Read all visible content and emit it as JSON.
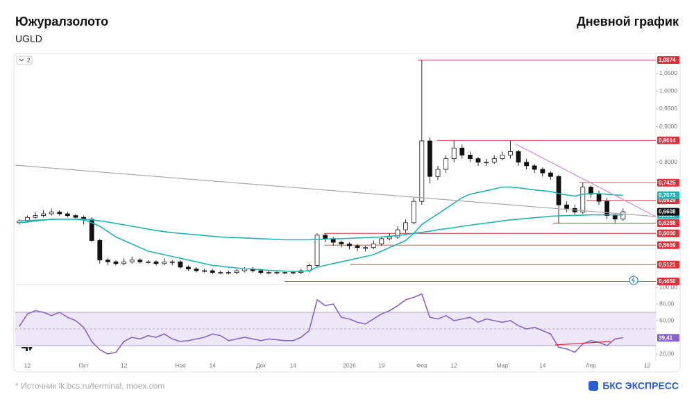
{
  "header": {
    "title": "Южуралзолото",
    "ticker": "UGLD",
    "subtitle": "Дневной график",
    "toolbar_badge": "2"
  },
  "chart_data": {
    "type": "candlestick",
    "categories": [
      null,
      "12",
      null,
      null,
      null,
      null,
      null,
      null,
      "Окт",
      null,
      null,
      null,
      null,
      "12",
      null,
      null,
      null,
      null,
      null,
      null,
      "Ноя",
      null,
      null,
      null,
      "14",
      null,
      null,
      null,
      null,
      null,
      "Дек",
      null,
      null,
      null,
      "14",
      null,
      null,
      null,
      null,
      null,
      null,
      "2026",
      null,
      null,
      null,
      "19",
      null,
      null,
      null,
      null,
      "Фев",
      null,
      null,
      null,
      "12",
      null,
      null,
      null,
      null,
      null,
      "Мар",
      null,
      null,
      null,
      null,
      "14",
      null,
      null,
      null,
      null,
      null,
      "Апр",
      null,
      null,
      null,
      null,
      null,
      null,
      "12",
      null
    ],
    "open": [
      0.63,
      0.635,
      0.645,
      0.65,
      0.655,
      0.66,
      0.655,
      0.65,
      0.645,
      0.64,
      0.58,
      0.525,
      0.52,
      0.515,
      0.52,
      0.525,
      0.52,
      0.52,
      0.515,
      0.52,
      0.52,
      0.505,
      0.5,
      0.495,
      0.495,
      0.49,
      0.49,
      0.49,
      0.495,
      0.5,
      0.495,
      0.49,
      0.49,
      0.49,
      0.49,
      0.49,
      0.495,
      0.51,
      0.595,
      0.585,
      0.575,
      0.57,
      0.565,
      0.56,
      0.56,
      0.57,
      0.585,
      0.59,
      0.61,
      0.63,
      0.69,
      0.86,
      0.76,
      0.78,
      0.81,
      0.84,
      0.82,
      0.81,
      0.8,
      0.8,
      0.81,
      0.82,
      0.83,
      0.8,
      0.79,
      0.78,
      0.77,
      0.76,
      0.68,
      0.67,
      0.66,
      0.73,
      0.71,
      0.69,
      0.65,
      0.64,
      null,
      null,
      null,
      null
    ],
    "high": [
      0.64,
      0.65,
      0.66,
      0.665,
      0.67,
      0.665,
      0.66,
      0.655,
      0.65,
      0.645,
      0.585,
      0.53,
      0.525,
      0.53,
      0.535,
      0.53,
      0.525,
      0.525,
      0.53,
      0.525,
      0.525,
      0.51,
      0.505,
      0.5,
      0.5,
      0.495,
      0.495,
      0.5,
      0.505,
      0.505,
      0.5,
      0.495,
      0.495,
      0.495,
      0.495,
      0.5,
      0.515,
      0.6,
      0.6,
      0.59,
      0.58,
      0.575,
      0.57,
      0.565,
      0.58,
      0.59,
      0.6,
      0.62,
      0.64,
      0.7,
      1.0874,
      0.87,
      0.79,
      0.82,
      0.8614,
      0.85,
      0.83,
      0.815,
      0.81,
      0.82,
      0.83,
      0.86,
      0.835,
      0.81,
      0.795,
      0.785,
      0.775,
      0.765,
      0.69,
      0.68,
      0.7425,
      0.735,
      0.72,
      0.7,
      0.655,
      0.67,
      null,
      null,
      null,
      null
    ],
    "low": [
      0.625,
      0.63,
      0.64,
      0.645,
      0.65,
      0.65,
      0.645,
      0.64,
      0.625,
      0.575,
      0.515,
      0.51,
      0.51,
      0.51,
      0.515,
      0.515,
      0.515,
      0.51,
      0.51,
      0.51,
      0.5,
      0.495,
      0.49,
      0.49,
      0.485,
      0.485,
      0.485,
      0.485,
      0.49,
      0.49,
      0.485,
      0.485,
      0.485,
      0.485,
      0.485,
      0.485,
      0.49,
      0.505,
      0.575,
      0.565,
      0.56,
      0.555,
      0.55,
      0.55,
      0.555,
      0.565,
      0.58,
      0.585,
      0.6,
      0.625,
      0.68,
      0.74,
      0.75,
      0.77,
      0.8,
      0.81,
      0.8,
      0.79,
      0.79,
      0.795,
      0.805,
      0.81,
      0.79,
      0.78,
      0.77,
      0.76,
      0.75,
      0.6288,
      0.66,
      0.65,
      0.655,
      0.7,
      0.68,
      0.64,
      0.63,
      0.635,
      null,
      null,
      null,
      null
    ],
    "close": [
      0.635,
      0.645,
      0.65,
      0.655,
      0.66,
      0.655,
      0.65,
      0.645,
      0.64,
      0.58,
      0.525,
      0.52,
      0.515,
      0.52,
      0.525,
      0.52,
      0.52,
      0.515,
      0.52,
      0.52,
      0.505,
      0.5,
      0.495,
      0.495,
      0.49,
      0.49,
      0.49,
      0.495,
      0.5,
      0.495,
      0.49,
      0.49,
      0.49,
      0.49,
      0.49,
      0.495,
      0.51,
      0.595,
      0.585,
      0.575,
      0.57,
      0.565,
      0.56,
      0.56,
      0.57,
      0.585,
      0.59,
      0.61,
      0.63,
      0.69,
      0.86,
      0.76,
      0.78,
      0.81,
      0.84,
      0.82,
      0.81,
      0.8,
      0.8,
      0.81,
      0.82,
      0.83,
      0.8,
      0.79,
      0.78,
      0.77,
      0.76,
      0.68,
      0.67,
      0.66,
      0.73,
      0.71,
      0.69,
      0.65,
      0.64,
      0.6608,
      null,
      null,
      null,
      null
    ],
    "close_label": "0,6608",
    "series": [
      {
        "color": "#1fb5b5",
        "last_label": "0,7073",
        "values": [
          0.63,
          0.632,
          0.635,
          0.637,
          0.64,
          0.64,
          0.64,
          0.64,
          0.638,
          0.63,
          0.62,
          0.605,
          0.59,
          0.58,
          0.57,
          0.56,
          0.55,
          0.545,
          0.54,
          0.535,
          0.53,
          0.525,
          0.52,
          0.515,
          0.51,
          0.508,
          0.505,
          0.503,
          0.5,
          0.5,
          0.498,
          0.496,
          0.495,
          0.494,
          0.493,
          0.493,
          0.495,
          0.505,
          0.51,
          0.515,
          0.52,
          0.525,
          0.53,
          0.535,
          0.54,
          0.55,
          0.56,
          0.57,
          0.58,
          0.6,
          0.625,
          0.64,
          0.655,
          0.67,
          0.685,
          0.7,
          0.71,
          0.715,
          0.72,
          0.725,
          0.73,
          0.73,
          0.728,
          0.725,
          0.722,
          0.72,
          0.718,
          0.712,
          0.708,
          0.705,
          0.71,
          0.712,
          0.712,
          0.71,
          0.708,
          0.7073,
          null,
          null,
          null,
          null
        ]
      },
      {
        "color": "#1fb5b5",
        "last_label": "0,6517",
        "values": [
          0.635,
          0.636,
          0.637,
          0.638,
          0.639,
          0.64,
          0.64,
          0.64,
          0.64,
          0.638,
          0.635,
          0.632,
          0.628,
          0.624,
          0.62,
          0.616,
          0.612,
          0.608,
          0.605,
          0.602,
          0.6,
          0.598,
          0.596,
          0.594,
          0.592,
          0.59,
          0.589,
          0.588,
          0.587,
          0.586,
          0.585,
          0.584,
          0.583,
          0.582,
          0.582,
          0.582,
          0.582,
          0.583,
          0.584,
          0.585,
          0.585,
          0.586,
          0.587,
          0.588,
          0.589,
          0.59,
          0.592,
          0.594,
          0.597,
          0.6,
          0.603,
          0.606,
          0.61,
          0.613,
          0.616,
          0.62,
          0.623,
          0.626,
          0.629,
          0.632,
          0.635,
          0.638,
          0.64,
          0.642,
          0.644,
          0.646,
          0.648,
          0.649,
          0.65,
          0.65,
          0.651,
          0.652,
          0.652,
          0.652,
          0.652,
          0.6517,
          null,
          null,
          null,
          null
        ]
      }
    ],
    "ylim": [
      0.46,
      1.1
    ],
    "yticks": [
      {
        "value": 1.05,
        "label": "1,0500"
      },
      {
        "value": 1.0,
        "label": "1,0000"
      },
      {
        "value": 0.95,
        "label": "0,9500"
      },
      {
        "value": 0.9,
        "label": "0,9000"
      },
      {
        "value": 0.8,
        "label": "0,8000"
      }
    ],
    "levels": [
      {
        "value": 1.0874,
        "label": "1,0874"
      },
      {
        "value": 0.8614,
        "label": "0,8614"
      },
      {
        "value": 0.7425,
        "label": "0,7425"
      },
      {
        "value": 0.6929,
        "label": "0,6929"
      },
      {
        "value": 0.6288,
        "label": "0,6288"
      },
      {
        "value": 0.6,
        "label": "0,6000"
      },
      {
        "value": 0.5669,
        "label": "0,5669"
      },
      {
        "value": 0.5121,
        "label": "0,5121"
      },
      {
        "value": 0.465,
        "label": "0,4650"
      }
    ],
    "level_color": "#e0303a",
    "rsi": {
      "color": "#8a63c9",
      "values": [
        53,
        68,
        72,
        70,
        66,
        70,
        64,
        60,
        52,
        35,
        25,
        20,
        22,
        35,
        40,
        38,
        42,
        40,
        44,
        38,
        35,
        36,
        38,
        40,
        44,
        42,
        36,
        38,
        40,
        38,
        36,
        38,
        37,
        36,
        36,
        40,
        48,
        85,
        78,
        80,
        64,
        62,
        58,
        56,
        62,
        68,
        72,
        78,
        85,
        88,
        92,
        64,
        62,
        66,
        60,
        62,
        64,
        58,
        62,
        60,
        58,
        60,
        54,
        50,
        52,
        48,
        44,
        28,
        26,
        22,
        32,
        36,
        34,
        30,
        38,
        39.41,
        null,
        null,
        null,
        null
      ],
      "last_label": "39,41",
      "ylim": [
        5,
        100
      ],
      "band": [
        30,
        70
      ],
      "midline": 50,
      "yticks": [
        {
          "value": 100,
          "label": "100,00"
        },
        {
          "value": 80,
          "label": "80,00"
        },
        {
          "value": 60,
          "label": "60,00"
        },
        {
          "value": 20,
          "label": "20,00"
        }
      ]
    }
  },
  "footer": {
    "source": "* Источник lk.bcs.ru/terminal, moex.com",
    "logo": "БКС ЭКСПРЕСС"
  }
}
